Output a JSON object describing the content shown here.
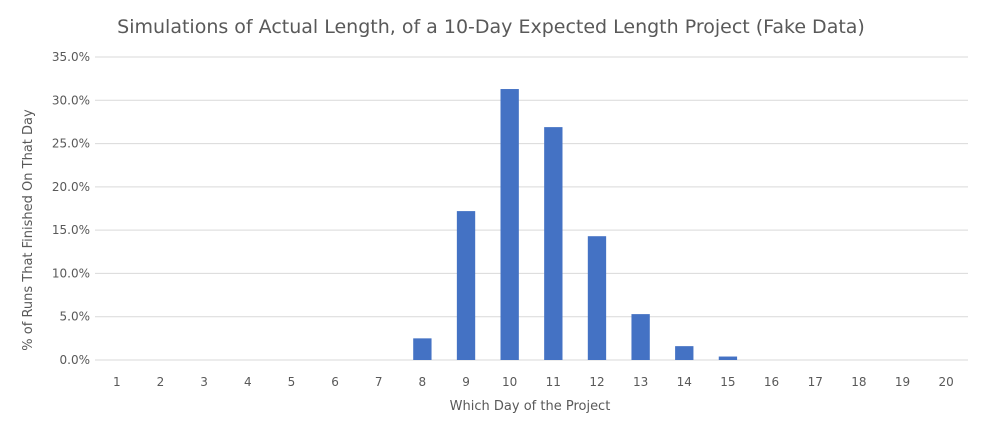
{
  "chart_data": {
    "type": "bar",
    "title": "Simulations of Actual Length, of a 10-Day Expected Length Project (Fake Data)",
    "xlabel": "Which Day of the Project",
    "ylabel": "% of Runs That Finished On That Day",
    "categories": [
      "1",
      "2",
      "3",
      "4",
      "5",
      "6",
      "7",
      "8",
      "9",
      "10",
      "11",
      "12",
      "13",
      "14",
      "15",
      "16",
      "17",
      "18",
      "19",
      "20"
    ],
    "values": [
      0.0,
      0.0,
      0.0,
      0.0,
      0.0,
      0.0,
      0.0,
      2.5,
      17.2,
      31.3,
      26.9,
      14.3,
      5.3,
      1.6,
      0.4,
      0.0,
      0.0,
      0.0,
      0.0,
      0.0
    ],
    "yticks": [
      "0.0%",
      "5.0%",
      "10.0%",
      "15.0%",
      "20.0%",
      "25.0%",
      "30.0%",
      "35.0%"
    ],
    "ylim": [
      0,
      35
    ],
    "grid": true,
    "legend": "none",
    "colors": {
      "bar": "#4472c4",
      "grid": "#d9d9d9",
      "text": "#595959"
    }
  }
}
